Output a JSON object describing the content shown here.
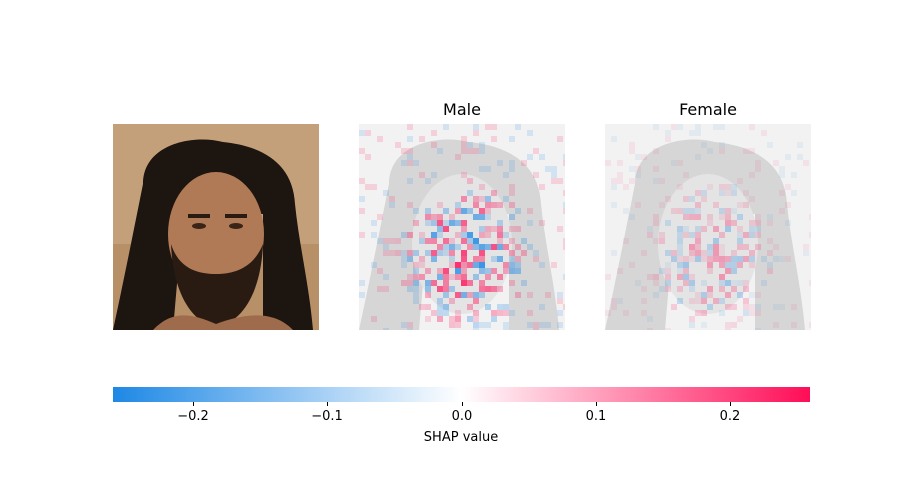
{
  "panels": {
    "original": {
      "description_icon": "face-photo"
    },
    "male": {
      "title": "Male"
    },
    "female": {
      "title": "Female"
    }
  },
  "colors": {
    "negative": "#1e88e5",
    "positive": "#ff0d57",
    "neutral": "#ffffff",
    "overlay_gray": "#d9d9d9"
  },
  "chart_data": {
    "type": "heatmap",
    "title": "",
    "outputs": [
      "Male",
      "Female"
    ],
    "colorbar": {
      "label": "SHAP value",
      "range": [
        -0.26,
        0.26
      ],
      "ticks": [
        -0.2,
        -0.1,
        0.0,
        0.1,
        0.2
      ],
      "tick_labels": [
        "−0.2",
        "−0.1",
        "0.0",
        "0.1",
        "0.2"
      ]
    }
  }
}
